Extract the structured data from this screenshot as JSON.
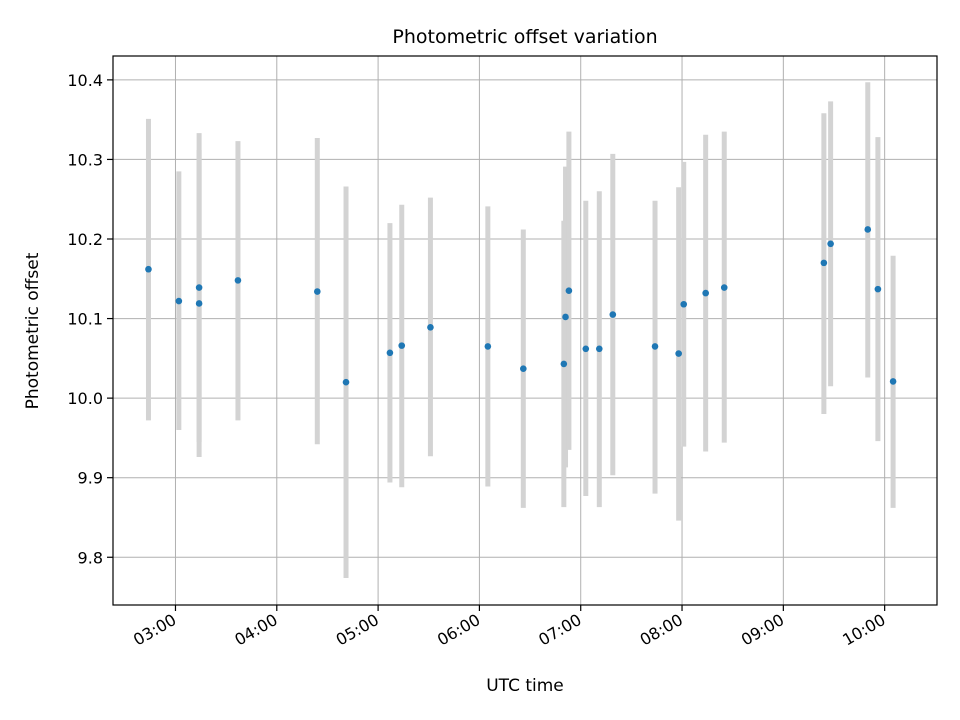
{
  "chart_data": {
    "type": "scatter",
    "title": "Photometric offset variation",
    "xlabel": "UTC time",
    "ylabel": "Photometric offset",
    "xlim": [
      "02:23",
      "10:31"
    ],
    "ylim": [
      9.74,
      10.43
    ],
    "x_ticks": [
      "03:00",
      "04:00",
      "05:00",
      "06:00",
      "07:00",
      "08:00",
      "09:00",
      "10:00"
    ],
    "y_ticks": [
      "9.8",
      "9.9",
      "10.0",
      "10.1",
      "10.2",
      "10.3",
      "10.4"
    ],
    "grid": true,
    "colors": {
      "point": "#1f77b4",
      "errorbar": "#d3d3d3",
      "grid": "#b0b0b0",
      "frame": "#000000"
    },
    "series": [
      {
        "points": [
          {
            "x": "02:44",
            "y": 10.162,
            "lo": 9.972,
            "hi": 10.351
          },
          {
            "x": "03:02",
            "y": 10.122,
            "lo": 9.96,
            "hi": 10.285
          },
          {
            "x": "03:14",
            "y": 10.139,
            "lo": 9.945,
            "hi": 10.333
          },
          {
            "x": "03:14",
            "y": 10.119,
            "lo": 9.926,
            "hi": 10.312
          },
          {
            "x": "03:37",
            "y": 10.148,
            "lo": 9.972,
            "hi": 10.323
          },
          {
            "x": "04:24",
            "y": 10.134,
            "lo": 9.942,
            "hi": 10.327
          },
          {
            "x": "04:41",
            "y": 10.02,
            "lo": 9.774,
            "hi": 10.266
          },
          {
            "x": "05:07",
            "y": 10.057,
            "lo": 9.894,
            "hi": 10.22
          },
          {
            "x": "05:14",
            "y": 10.066,
            "lo": 9.888,
            "hi": 10.243
          },
          {
            "x": "05:31",
            "y": 10.089,
            "lo": 9.927,
            "hi": 10.252
          },
          {
            "x": "06:05",
            "y": 10.065,
            "lo": 9.889,
            "hi": 10.241
          },
          {
            "x": "06:26",
            "y": 10.037,
            "lo": 9.862,
            "hi": 10.212
          },
          {
            "x": "06:50",
            "y": 10.043,
            "lo": 9.863,
            "hi": 10.223
          },
          {
            "x": "06:51",
            "y": 10.102,
            "lo": 9.913,
            "hi": 10.291
          },
          {
            "x": "06:53",
            "y": 10.135,
            "lo": 9.935,
            "hi": 10.335
          },
          {
            "x": "07:03",
            "y": 10.062,
            "lo": 9.877,
            "hi": 10.248
          },
          {
            "x": "07:11",
            "y": 10.062,
            "lo": 9.863,
            "hi": 10.26
          },
          {
            "x": "07:19",
            "y": 10.105,
            "lo": 9.903,
            "hi": 10.307
          },
          {
            "x": "07:44",
            "y": 10.065,
            "lo": 9.88,
            "hi": 10.248
          },
          {
            "x": "07:58",
            "y": 10.056,
            "lo": 9.846,
            "hi": 10.265
          },
          {
            "x": "08:01",
            "y": 10.118,
            "lo": 9.939,
            "hi": 10.297
          },
          {
            "x": "08:14",
            "y": 10.132,
            "lo": 9.933,
            "hi": 10.331
          },
          {
            "x": "08:25",
            "y": 10.139,
            "lo": 9.944,
            "hi": 10.335
          },
          {
            "x": "09:24",
            "y": 10.17,
            "lo": 9.98,
            "hi": 10.358
          },
          {
            "x": "09:28",
            "y": 10.194,
            "lo": 10.015,
            "hi": 10.373
          },
          {
            "x": "09:50",
            "y": 10.212,
            "lo": 10.026,
            "hi": 10.397
          },
          {
            "x": "09:56",
            "y": 10.137,
            "lo": 9.946,
            "hi": 10.328
          },
          {
            "x": "10:05",
            "y": 10.021,
            "lo": 9.862,
            "hi": 10.179
          }
        ]
      }
    ]
  }
}
